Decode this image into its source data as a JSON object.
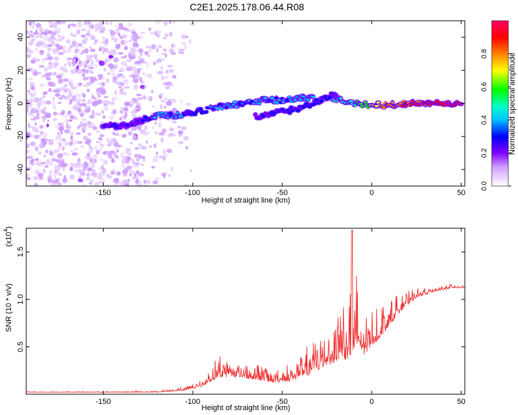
{
  "title": "C2E1.2025.178.06.44.R08",
  "chart_data": [
    {
      "type": "heatmap",
      "xlabel": "Height of straight line (km)",
      "ylabel": "Frequency (Hz)",
      "xlim": [
        -193,
        52
      ],
      "ylim": [
        -50,
        50
      ],
      "xticks": [
        -150,
        -100,
        -50,
        0,
        50
      ],
      "yticks": [
        -40,
        -20,
        0,
        20,
        40
      ],
      "grid": false,
      "colorbar": {
        "label": "Normalized spectral amplitude",
        "range": [
          0,
          1
        ],
        "ticks": [
          "0.0",
          "0.2",
          "0.4",
          "0.6",
          "0.8"
        ],
        "colors": [
          "#ffffff",
          "#e6ccff",
          "#cc99ff",
          "#8000ff",
          "#0000ff",
          "#00bfff",
          "#00ffcc",
          "#00ff00",
          "#ffff00",
          "#ff8000",
          "#ff0000",
          "#ff0066"
        ]
      },
      "ridge": [
        {
          "x": -150,
          "y": -14,
          "amp": 0.3
        },
        {
          "x": -140,
          "y": -13,
          "amp": 0.35
        },
        {
          "x": -130,
          "y": -11,
          "amp": 0.3
        },
        {
          "x": -120,
          "y": -7,
          "amp": 0.45
        },
        {
          "x": -110,
          "y": -7,
          "amp": 0.45
        },
        {
          "x": -100,
          "y": -6,
          "amp": 0.35
        },
        {
          "x": -90,
          "y": -3,
          "amp": 0.4
        },
        {
          "x": -80,
          "y": -1,
          "amp": 0.45
        },
        {
          "x": -70,
          "y": 0,
          "amp": 0.4
        },
        {
          "x": -60,
          "y": 2,
          "amp": 0.45
        },
        {
          "x": -50,
          "y": 2,
          "amp": 0.4
        },
        {
          "x": -40,
          "y": 3,
          "amp": 0.45
        },
        {
          "x": -30,
          "y": 3,
          "amp": 0.5
        },
        {
          "x": -20,
          "y": 3,
          "amp": 0.5
        },
        {
          "x": -10,
          "y": 0,
          "amp": 0.55
        },
        {
          "x": 0,
          "y": -1,
          "amp": 0.7
        },
        {
          "x": 10,
          "y": -1,
          "amp": 0.8
        },
        {
          "x": 20,
          "y": 0,
          "amp": 0.85
        },
        {
          "x": 30,
          "y": 0,
          "amp": 0.9
        },
        {
          "x": 40,
          "y": 0,
          "amp": 0.95
        },
        {
          "x": 50,
          "y": 0,
          "amp": 0.95
        }
      ],
      "secondary_ridge": [
        {
          "x": -65,
          "y": -8,
          "amp": 0.3
        },
        {
          "x": -50,
          "y": -5,
          "amp": 0.35
        },
        {
          "x": -40,
          "y": -3,
          "amp": 0.35
        },
        {
          "x": -30,
          "y": 1,
          "amp": 0.4
        },
        {
          "x": -20,
          "y": 6,
          "amp": 0.3
        }
      ]
    },
    {
      "type": "line",
      "xlabel": "Height of straight line (km)",
      "ylabel": "SNR (10 * v/v)",
      "y_multiplier": "(x10",
      "y_multiplier_exp": "4",
      "xlim": [
        -193,
        52
      ],
      "ylim": [
        0,
        1.75
      ],
      "xticks": [
        -150,
        -100,
        -50,
        0,
        50
      ],
      "yticks": [
        0.5,
        1.0,
        1.5
      ],
      "ytick_labels": [
        "0.5",
        "1.0",
        "1.5"
      ],
      "grid": false,
      "series": [
        {
          "color": "#ee3030",
          "envelope": [
            {
              "x": -193,
              "base": 0.02,
              "amp": 0.01
            },
            {
              "x": -150,
              "base": 0.02,
              "amp": 0.01
            },
            {
              "x": -120,
              "base": 0.02,
              "amp": 0.02
            },
            {
              "x": -105,
              "base": 0.04,
              "amp": 0.04
            },
            {
              "x": -95,
              "base": 0.08,
              "amp": 0.08
            },
            {
              "x": -85,
              "base": 0.18,
              "amp": 0.28
            },
            {
              "x": -75,
              "base": 0.18,
              "amp": 0.22
            },
            {
              "x": -65,
              "base": 0.15,
              "amp": 0.22
            },
            {
              "x": -55,
              "base": 0.12,
              "amp": 0.2
            },
            {
              "x": -45,
              "base": 0.14,
              "amp": 0.2
            },
            {
              "x": -35,
              "base": 0.2,
              "amp": 0.35
            },
            {
              "x": -25,
              "base": 0.3,
              "amp": 0.5
            },
            {
              "x": -18,
              "base": 0.35,
              "amp": 0.85
            },
            {
              "x": -12,
              "base": 0.35,
              "amp": 1.4
            },
            {
              "x": -5,
              "base": 0.4,
              "amp": 0.5
            },
            {
              "x": 5,
              "base": 0.6,
              "amp": 0.4
            },
            {
              "x": 15,
              "base": 0.85,
              "amp": 0.25
            },
            {
              "x": 25,
              "base": 1.02,
              "amp": 0.1
            },
            {
              "x": 35,
              "base": 1.08,
              "amp": 0.06
            },
            {
              "x": 45,
              "base": 1.12,
              "amp": 0.05
            },
            {
              "x": 52,
              "base": 1.12,
              "amp": 0.04
            }
          ]
        }
      ]
    }
  ]
}
